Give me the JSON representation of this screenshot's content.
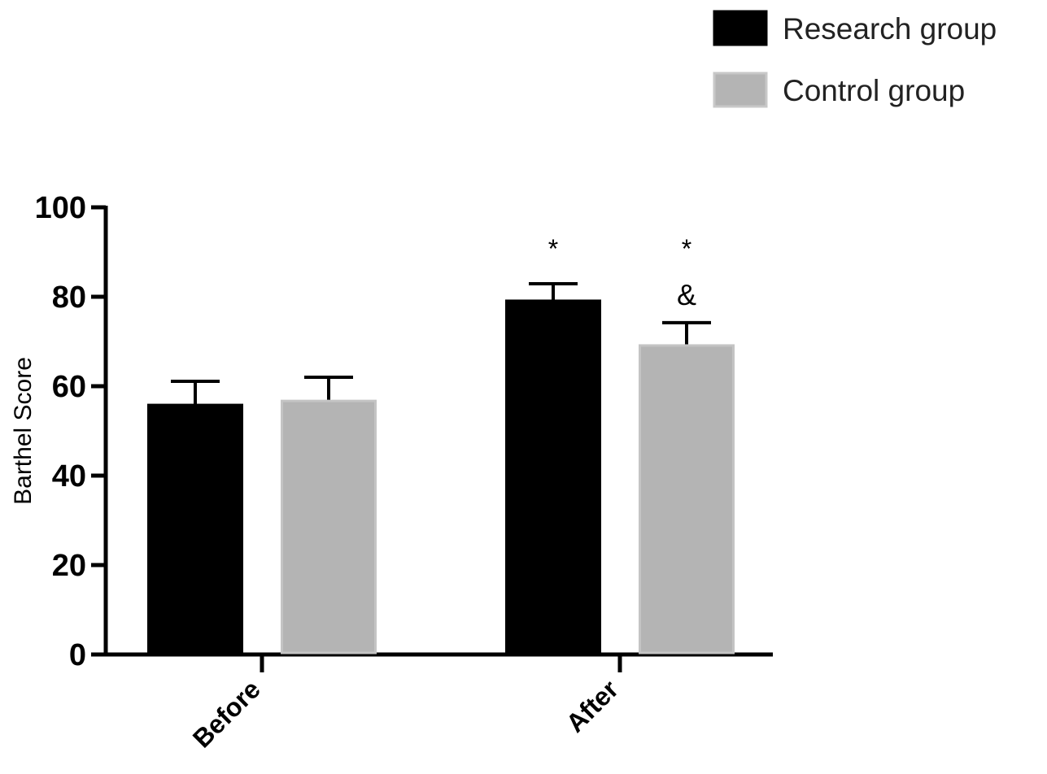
{
  "chart_data": {
    "type": "bar",
    "title": "",
    "xlabel": "",
    "ylabel": "Barthel Score",
    "ylim": [
      0,
      100
    ],
    "yticks": [
      "0",
      "20",
      "40",
      "60",
      "80",
      "100"
    ],
    "categories": [
      "Before",
      "After"
    ],
    "series": [
      {
        "name": "Research group",
        "color": "#000000",
        "values": [
          55.8,
          79.1
        ],
        "errors": [
          5.3,
          3.8
        ],
        "annotations": [
          "",
          "*"
        ]
      },
      {
        "name": "Control group",
        "color": "#b4b4b4",
        "values": [
          56.7,
          69.1
        ],
        "errors": [
          5.3,
          5.1
        ],
        "annotations": [
          "",
          "*\n&"
        ]
      }
    ],
    "legend": {
      "placement": "top-right"
    },
    "grid": false
  }
}
